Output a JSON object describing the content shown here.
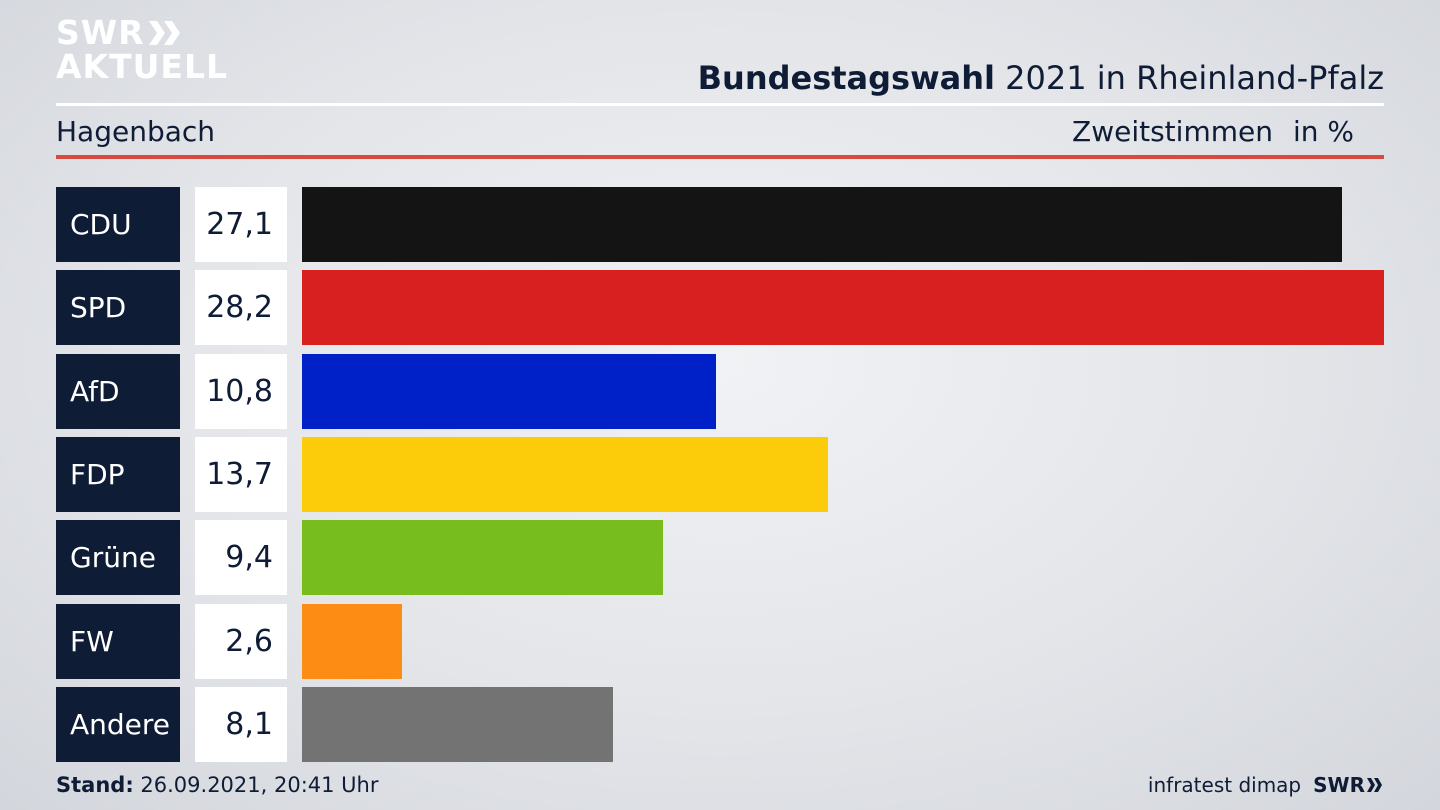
{
  "header": {
    "logo_line1": "SWR",
    "logo_line2": "AKTUELL",
    "title_bold": "Bundestagswahl",
    "title_rest": " 2021 in Rheinland-Pfalz",
    "location": "Hagenbach",
    "measure": "Zweitstimmen",
    "unit": "in %"
  },
  "chart_data": {
    "type": "bar",
    "orientation": "horizontal",
    "categories": [
      "CDU",
      "SPD",
      "AfD",
      "FDP",
      "Grüne",
      "FW",
      "Andere"
    ],
    "values": [
      27.1,
      28.2,
      10.8,
      13.7,
      9.4,
      2.6,
      8.1
    ],
    "value_labels": [
      "27,1",
      "28,2",
      "10,8",
      "13,7",
      "9,4",
      "2,6",
      "8,1"
    ],
    "colors": [
      "#141414",
      "#d82020",
      "#0020c8",
      "#fccb0a",
      "#77bd1e",
      "#fd8c14",
      "#737373"
    ],
    "xlim": [
      0,
      28.2
    ],
    "grid": false,
    "legend": "none"
  },
  "footer": {
    "stand_label": "Stand:",
    "stand_value": " 26.09.2021, 20:41 Uhr",
    "source": "infratest dimap",
    "logo": "SWR"
  }
}
